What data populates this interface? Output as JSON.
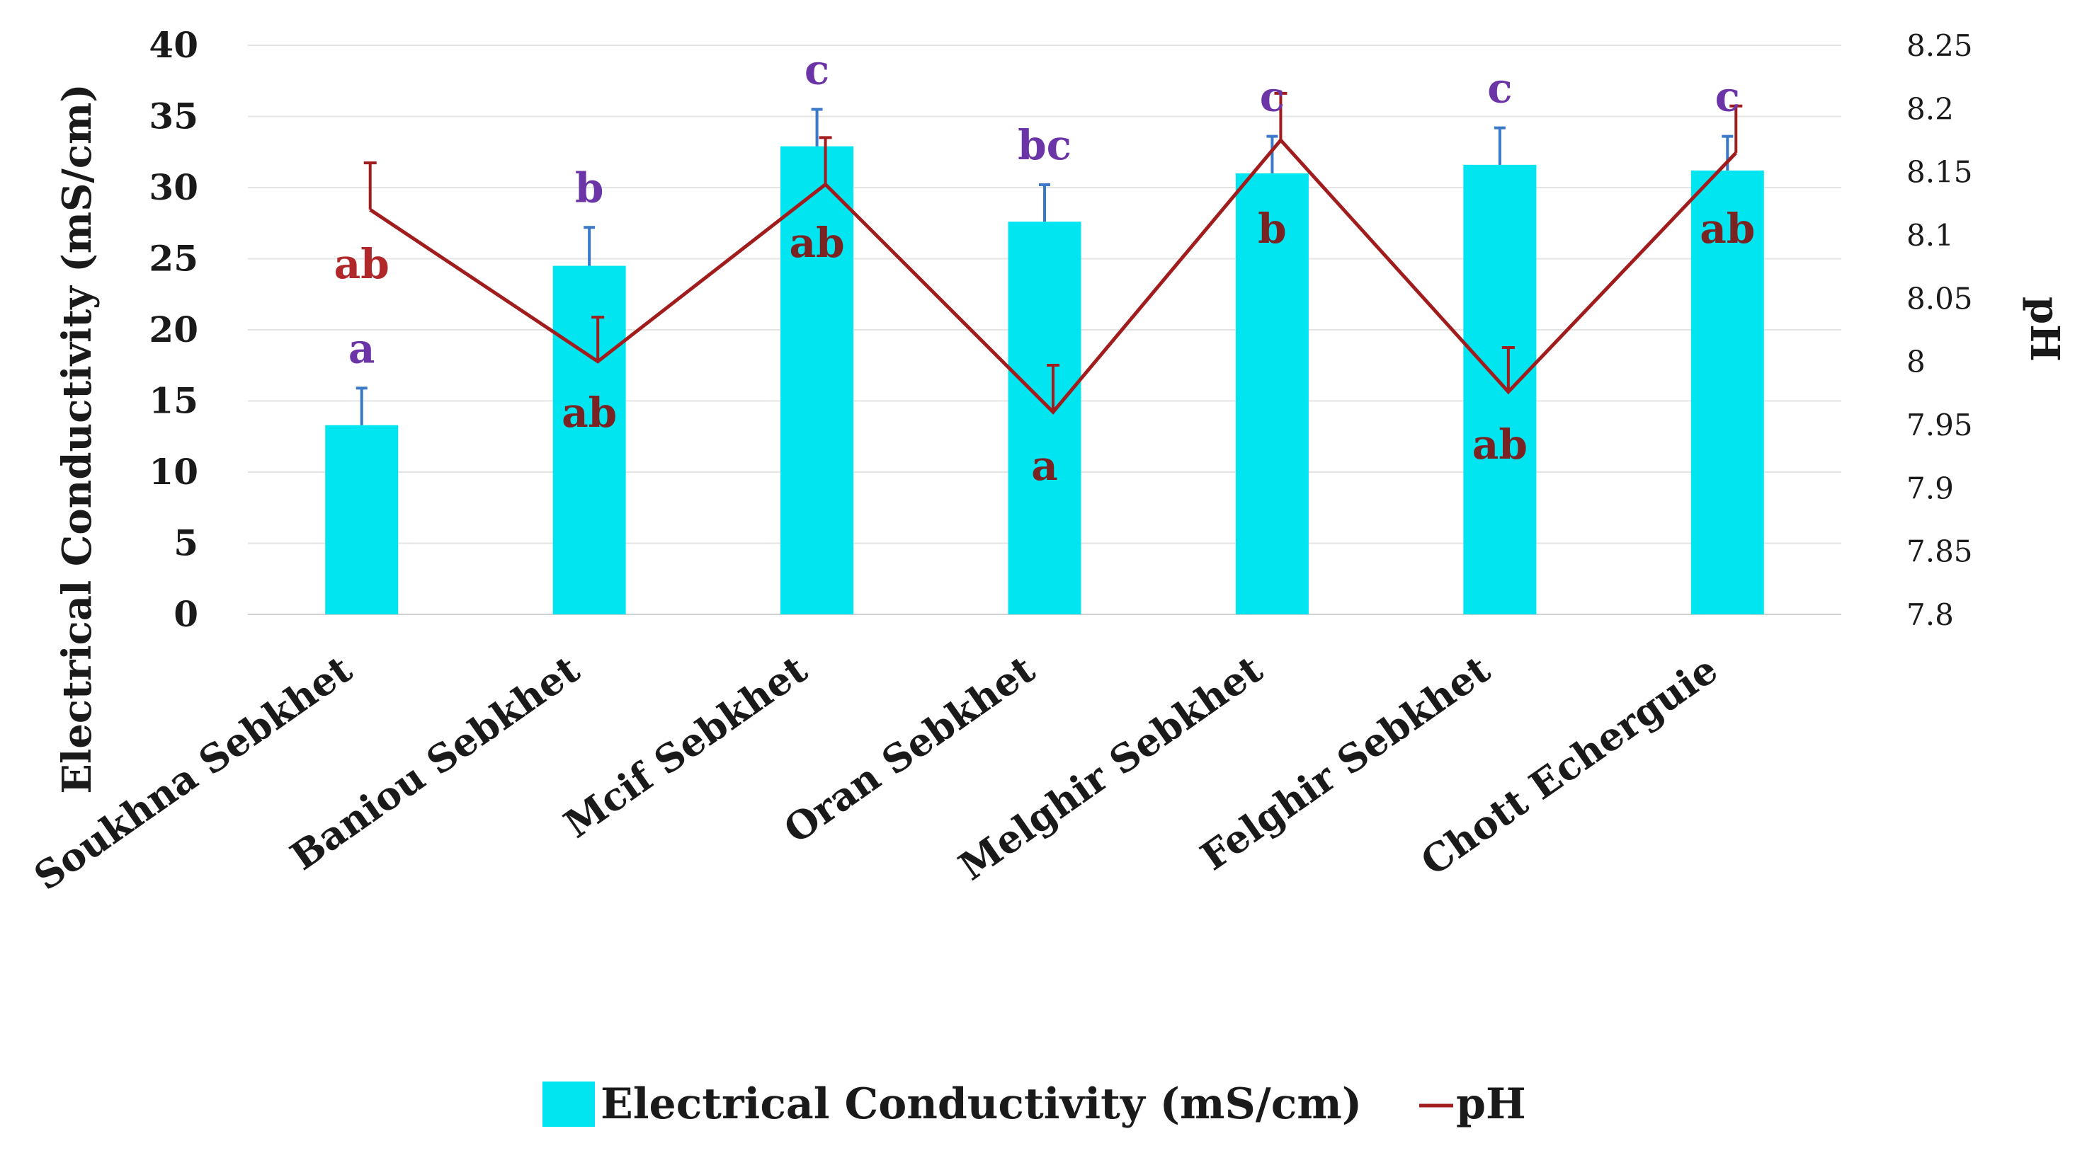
{
  "chart_data": {
    "type": "bar",
    "categories": [
      "Soukhna Sebkhet",
      "Baniou Sebkhet",
      "Mcif Sebkhet",
      "Oran Sebkhet",
      "Melghir Sebkhet",
      "Felghir Sebkhet",
      "Chott Echerguie"
    ],
    "ylabel": "Electrical Conductivity (mS/cm)",
    "y2label": "pH",
    "ylim": [
      0,
      40
    ],
    "y2lim": [
      7.8,
      8.25
    ],
    "yticks": [
      "0",
      "5",
      "10",
      "15",
      "20",
      "25",
      "30",
      "35",
      "40"
    ],
    "y2ticks": [
      "7.8",
      "7.85",
      "7.9",
      "7.95",
      "8",
      "8.05",
      "8.1",
      "8.15",
      "8.2",
      "8.25"
    ],
    "grid": true,
    "legend_position": "bottom",
    "series": [
      {
        "name": "Electrical Conductivity (mS/cm)",
        "type": "bar",
        "axis": "left",
        "color": "#00e5ef",
        "error_color": "#3a78c8",
        "values": [
          13.3,
          24.5,
          32.9,
          27.6,
          31.0,
          31.6,
          31.2
        ],
        "errors": [
          2.6,
          2.7,
          2.6,
          2.6,
          2.6,
          2.6,
          2.4
        ],
        "letters": [
          "a",
          "b",
          "c",
          "bc",
          "c",
          "c",
          "c"
        ],
        "letter_color": "#6b35a8"
      },
      {
        "name": "pH",
        "type": "line",
        "axis": "right",
        "color": "#a11d1d",
        "values": [
          8.12,
          8.0,
          8.14,
          7.96,
          8.175,
          7.976,
          8.165
        ],
        "errors": [
          0.037,
          0.035,
          0.037,
          0.037,
          0.037,
          0.035,
          0.037
        ],
        "letters": [
          "ab",
          "ab",
          "ab",
          "a",
          "b",
          "ab",
          "ab"
        ],
        "letter_colors": [
          "#b0282a",
          "#7a2323",
          "#7a2323",
          "#7a2323",
          "#7a2323",
          "#7a2323",
          "#7a2323"
        ]
      }
    ]
  }
}
